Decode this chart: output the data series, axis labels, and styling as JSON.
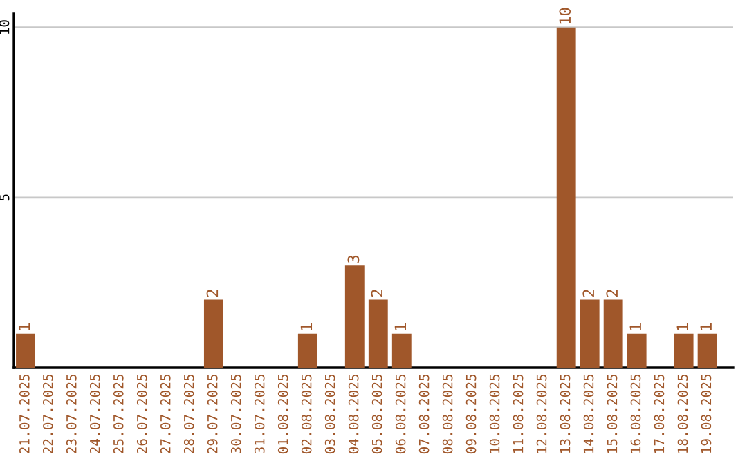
{
  "chart_data": {
    "type": "bar",
    "categories": [
      "21.07.2025",
      "22.07.2025",
      "23.07.2025",
      "24.07.2025",
      "25.07.2025",
      "26.07.2025",
      "27.07.2025",
      "28.07.2025",
      "29.07.2025",
      "30.07.2025",
      "31.07.2025",
      "01.08.2025",
      "02.08.2025",
      "03.08.2025",
      "04.08.2025",
      "05.08.2025",
      "06.08.2025",
      "07.08.2025",
      "08.08.2025",
      "09.08.2025",
      "10.08.2025",
      "11.08.2025",
      "12.08.2025",
      "13.08.2025",
      "14.08.2025",
      "15.08.2025",
      "16.08.2025",
      "17.08.2025",
      "18.08.2025",
      "19.08.2025"
    ],
    "values": [
      1,
      0,
      0,
      0,
      0,
      0,
      0,
      0,
      2,
      0,
      0,
      0,
      1,
      0,
      3,
      2,
      1,
      0,
      0,
      0,
      0,
      0,
      0,
      10,
      2,
      2,
      1,
      0,
      1,
      1
    ],
    "value_labels": [
      "1",
      null,
      null,
      null,
      null,
      null,
      null,
      null,
      "2",
      null,
      null,
      null,
      "1",
      null,
      "3",
      "2",
      "1",
      null,
      null,
      null,
      null,
      null,
      null,
      "10",
      "2",
      "2",
      "1",
      null,
      "1",
      "1"
    ],
    "color": "#a0572a",
    "ylim": [
      0,
      10.4
    ],
    "yticks": [
      5,
      10
    ],
    "grid": "y",
    "legend": false
  }
}
